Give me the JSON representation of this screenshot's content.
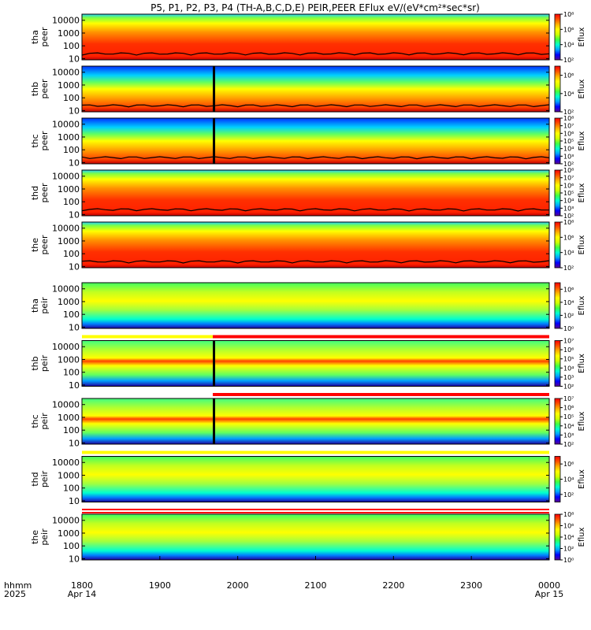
{
  "figure": {
    "title": "P5, P1, P2, P3, P4 (TH-A,B,C,D,E) PEIR,PEER EFlux eV/(eV*cm²*sec*sr)",
    "time_row_label": "hhmm",
    "year_label": "2025",
    "colorbar_label": "Eflux"
  },
  "chart_data": {
    "type": "heatmap",
    "x_axis": {
      "tick_labels": [
        "1800",
        "1900",
        "2000",
        "2100",
        "2200",
        "2300",
        "0000"
      ],
      "date_labels": [
        "Apr 14",
        "Apr 15"
      ],
      "range": [
        "2025-04-14 18:00",
        "2025-04-15 00:00"
      ]
    },
    "panels": [
      {
        "probe": "tha",
        "species": "peer",
        "y_label": [
          "tha",
          "peer"
        ],
        "y_scale": "log",
        "y_ticks": [
          "10",
          "100",
          "1000",
          "10000"
        ],
        "ylim": [
          8,
          30000
        ],
        "colorbar_ticks": [
          "10²",
          "10⁴",
          "10⁶",
          "10⁸"
        ],
        "colorbar_range": [
          2,
          8
        ],
        "flag_bar": null,
        "data_gap": null,
        "overlay_line": true
      },
      {
        "probe": "thb",
        "species": "peer",
        "y_label": [
          "thb",
          "peer"
        ],
        "y_scale": "log",
        "y_ticks": [
          "10",
          "100",
          "1000",
          "10000"
        ],
        "ylim": [
          8,
          30000
        ],
        "colorbar_ticks": [
          "10²",
          "10⁴",
          "10⁶"
        ],
        "colorbar_range": [
          2,
          7
        ],
        "flag_bar": null,
        "data_gap": 0.28,
        "overlay_line": true
      },
      {
        "probe": "thc",
        "species": "peer",
        "y_label": [
          "thc",
          "peer"
        ],
        "y_scale": "log",
        "y_ticks": [
          "10",
          "100",
          "1000",
          "10000"
        ],
        "ylim": [
          8,
          30000
        ],
        "colorbar_ticks": [
          "10²",
          "10³",
          "10⁴",
          "10⁵",
          "10⁶",
          "10⁷",
          "10⁸"
        ],
        "colorbar_range": [
          2,
          8
        ],
        "flag_bar": null,
        "data_gap": 0.28,
        "overlay_line": true
      },
      {
        "probe": "thd",
        "species": "peer",
        "y_label": [
          "thd",
          "peer"
        ],
        "y_scale": "log",
        "y_ticks": [
          "10",
          "100",
          "1000",
          "10000"
        ],
        "ylim": [
          8,
          30000
        ],
        "colorbar_ticks": [
          "10²",
          "10³",
          "10⁴",
          "10⁵",
          "10⁶",
          "10⁷",
          "10⁸"
        ],
        "colorbar_range": [
          2,
          8
        ],
        "flag_bar": null,
        "data_gap": null,
        "overlay_line": true
      },
      {
        "probe": "the",
        "species": "peer",
        "y_label": [
          "the",
          "peer"
        ],
        "y_scale": "log",
        "y_ticks": [
          "10",
          "100",
          "1000",
          "10000"
        ],
        "ylim": [
          8,
          30000
        ],
        "colorbar_ticks": [
          "10²",
          "10⁴",
          "10⁶",
          "10⁸"
        ],
        "colorbar_range": [
          2,
          8
        ],
        "flag_bar": null,
        "data_gap": null,
        "overlay_line": true
      },
      {
        "probe": "tha",
        "species": "peir",
        "y_label": [
          "tha",
          "peir"
        ],
        "y_scale": "log",
        "y_ticks": [
          "10",
          "100",
          "1000",
          "10000"
        ],
        "ylim": [
          8,
          30000
        ],
        "colorbar_ticks": [
          "10⁰",
          "10²",
          "10⁴",
          "10⁶"
        ],
        "colorbar_range": [
          0,
          7
        ],
        "flag_bar": [
          "#ffffff"
        ],
        "data_gap": null,
        "overlay_line": false
      },
      {
        "probe": "thb",
        "species": "peir",
        "y_label": [
          "thb",
          "peir"
        ],
        "y_scale": "log",
        "y_ticks": [
          "10",
          "100",
          "1000",
          "10000"
        ],
        "ylim": [
          8,
          30000
        ],
        "colorbar_ticks": [
          "10²",
          "10³",
          "10⁴",
          "10⁵",
          "10⁶",
          "10⁷"
        ],
        "colorbar_range": [
          2,
          7
        ],
        "flag_bar": [
          "#ffff00",
          "#ff0000"
        ],
        "flag_split": 0.28,
        "data_gap": 0.28,
        "overlay_line": false
      },
      {
        "probe": "thc",
        "species": "peir",
        "y_label": [
          "thc",
          "peir"
        ],
        "y_scale": "log",
        "y_ticks": [
          "10",
          "100",
          "1000",
          "10000"
        ],
        "ylim": [
          8,
          30000
        ],
        "colorbar_ticks": [
          "10²",
          "10³",
          "10⁴",
          "10⁵",
          "10⁶",
          "10⁷"
        ],
        "colorbar_range": [
          2,
          7
        ],
        "flag_bar": [
          "#ffffff",
          "#ff0000"
        ],
        "flag_split": 0.28,
        "data_gap": 0.28,
        "overlay_line": false
      },
      {
        "probe": "thd",
        "species": "peir",
        "y_label": [
          "thd",
          "peir"
        ],
        "y_scale": "log",
        "y_ticks": [
          "10",
          "100",
          "1000",
          "10000"
        ],
        "ylim": [
          8,
          30000
        ],
        "colorbar_ticks": [
          "10²",
          "10⁴",
          "10⁶"
        ],
        "colorbar_range": [
          1,
          7
        ],
        "flag_bar": [
          "#ffff00"
        ],
        "data_gap": null,
        "overlay_line": false
      },
      {
        "probe": "the",
        "species": "peir",
        "y_label": [
          "the",
          "peir"
        ],
        "y_scale": "log",
        "y_ticks": [
          "10",
          "100",
          "1000",
          "10000"
        ],
        "ylim": [
          8,
          30000
        ],
        "colorbar_ticks": [
          "10⁰",
          "10²",
          "10⁴",
          "10⁶",
          "10⁸"
        ],
        "colorbar_range": [
          0,
          8
        ],
        "flag_bar": [
          "#ff0000",
          "#ffffff",
          "#ff0000"
        ],
        "data_gap": null,
        "overlay_line": false
      }
    ],
    "colormap": [
      "#5a0090",
      "#0000ff",
      "#00a0ff",
      "#00ffd0",
      "#40ff40",
      "#d0ff00",
      "#ffff00",
      "#ffb000",
      "#ff5000",
      "#ff0000"
    ]
  }
}
